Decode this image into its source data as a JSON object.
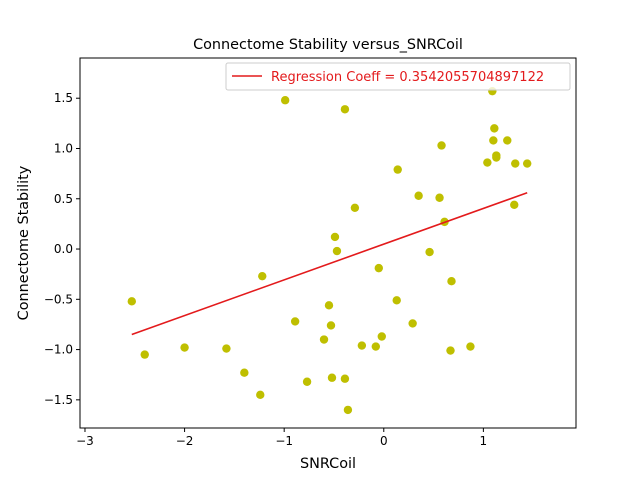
{
  "chart_data": {
    "type": "scatter",
    "title": "Connectome Stability versus_SNRCoil",
    "xlabel": "SNRCoil",
    "ylabel": "Connectome Stability",
    "xlim": [
      -3.05,
      1.93
    ],
    "ylim": [
      -1.78,
      1.9
    ],
    "xticks": [
      -3,
      -2,
      -1,
      0,
      1
    ],
    "xtick_labels": [
      "−3",
      "−2",
      "−1",
      "0",
      "1"
    ],
    "yticks": [
      -1.5,
      -1.0,
      -0.5,
      0.0,
      0.5,
      1.0,
      1.5
    ],
    "ytick_labels": [
      "−1.5",
      "−1.0",
      "−0.5",
      "0.0",
      "0.5",
      "1.0",
      "1.5"
    ],
    "grid": false,
    "legend_position": "top-right",
    "series": [
      {
        "kind": "scatter",
        "color": "#bfbf00",
        "points": [
          [
            -2.53,
            -0.52
          ],
          [
            -2.4,
            -1.05
          ],
          [
            -2.0,
            -0.98
          ],
          [
            -1.58,
            -0.99
          ],
          [
            -1.4,
            -1.23
          ],
          [
            -1.24,
            -1.45
          ],
          [
            -1.22,
            -0.27
          ],
          [
            -0.99,
            1.48
          ],
          [
            -0.89,
            -0.72
          ],
          [
            -0.77,
            -1.32
          ],
          [
            -0.6,
            -0.9
          ],
          [
            -0.55,
            -0.56
          ],
          [
            -0.53,
            -0.76
          ],
          [
            -0.52,
            -1.28
          ],
          [
            -0.49,
            0.12
          ],
          [
            -0.47,
            -0.02
          ],
          [
            -0.39,
            1.39
          ],
          [
            -0.39,
            -1.29
          ],
          [
            -0.36,
            -1.6
          ],
          [
            -0.29,
            0.41
          ],
          [
            -0.22,
            -0.96
          ],
          [
            -0.08,
            -0.97
          ],
          [
            -0.05,
            -0.19
          ],
          [
            -0.02,
            -0.87
          ],
          [
            0.13,
            -0.51
          ],
          [
            0.14,
            0.79
          ],
          [
            0.29,
            -0.74
          ],
          [
            0.35,
            0.53
          ],
          [
            0.46,
            -0.03
          ],
          [
            0.56,
            0.51
          ],
          [
            0.58,
            1.03
          ],
          [
            0.61,
            0.27
          ],
          [
            0.67,
            -1.01
          ],
          [
            0.68,
            -0.32
          ],
          [
            0.87,
            -0.97
          ],
          [
            1.04,
            0.86
          ],
          [
            1.09,
            1.57
          ],
          [
            1.1,
            1.08
          ],
          [
            1.11,
            1.2
          ],
          [
            1.13,
            0.91
          ],
          [
            1.13,
            0.93
          ],
          [
            1.24,
            1.08
          ],
          [
            1.31,
            0.44
          ],
          [
            1.32,
            0.85
          ],
          [
            1.44,
            0.85
          ]
        ]
      },
      {
        "kind": "line",
        "name": "Regression Coeff = 0.3542055704897122",
        "color": "#e31a1c",
        "x": [
          -2.53,
          1.44
        ],
        "y": [
          -0.85,
          0.56
        ]
      }
    ]
  }
}
